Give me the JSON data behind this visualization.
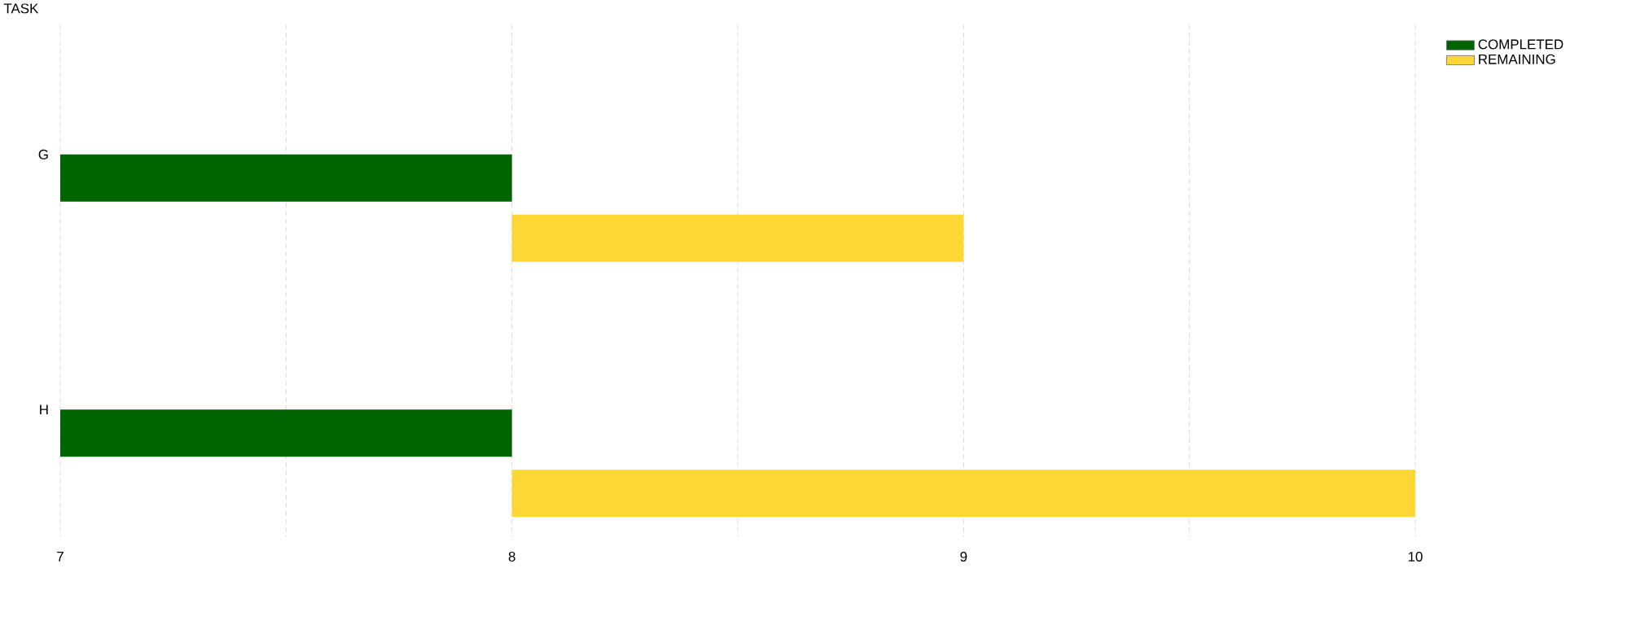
{
  "chart_data": {
    "type": "bar",
    "orientation": "horizontal",
    "ylabel": "TASK",
    "categories": [
      "G",
      "H"
    ],
    "series": [
      {
        "name": "COMPLETED",
        "color": "#006400",
        "values": [
          1,
          1
        ],
        "base": [
          7,
          7
        ]
      },
      {
        "name": "REMAINING",
        "color": "#fdd835",
        "values": [
          1,
          2
        ],
        "base": [
          8,
          8
        ]
      }
    ],
    "xlim": [
      7,
      10
    ],
    "xticks": [
      7,
      {
        "value": 7.5,
        "label": null
      },
      8,
      {
        "value": 8.5,
        "label": null
      },
      9,
      {
        "value": 9.5,
        "label": null
      },
      10
    ],
    "grid": "x",
    "legend": "top right"
  }
}
